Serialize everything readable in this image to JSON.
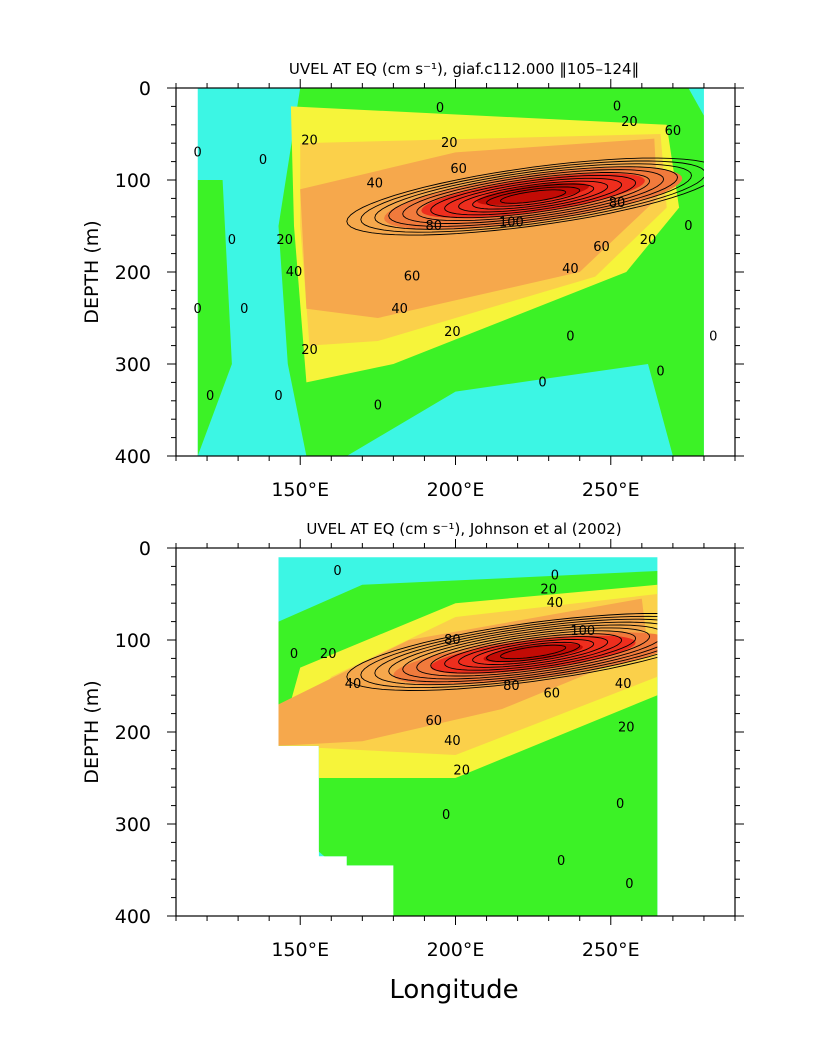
{
  "chart_data": [
    {
      "type": "contour",
      "title": "UVEL AT EQ (cm s⁻¹), giaf.c112.000 ‖105–124‖",
      "xlabel": "",
      "ylabel": "DEPTH (m)",
      "xlim": [
        110,
        290
      ],
      "ylim": [
        400,
        0
      ],
      "xticks": [
        {
          "value": 150,
          "label": "150°E"
        },
        {
          "value": 200,
          "label": "200°E"
        },
        {
          "value": 250,
          "label": "250°E"
        }
      ],
      "yticks": [
        {
          "value": 0,
          "label": "0"
        },
        {
          "value": 100,
          "label": "100"
        },
        {
          "value": 200,
          "label": "200"
        },
        {
          "value": 300,
          "label": "300"
        },
        {
          "value": 400,
          "label": "400"
        }
      ],
      "data_extent": {
        "x": [
          117,
          280
        ],
        "y": [
          0,
          400
        ]
      },
      "contour_levels": [
        -20,
        -10,
        0,
        10,
        20,
        30,
        40,
        50,
        60,
        70,
        80,
        90,
        100,
        110
      ],
      "core": {
        "x": 225,
        "depth": 115,
        "max_speed": 110
      },
      "contour_labels": [
        {
          "value": "0",
          "x": 117,
          "depth": 70
        },
        {
          "value": "0",
          "x": 128,
          "depth": 165
        },
        {
          "value": "0",
          "x": 117,
          "depth": 240
        },
        {
          "value": "0",
          "x": 121,
          "depth": 335
        },
        {
          "value": "0",
          "x": 143,
          "depth": 335
        },
        {
          "value": "0",
          "x": 132,
          "depth": 240
        },
        {
          "value": "0",
          "x": 138,
          "depth": 78
        },
        {
          "value": "20",
          "x": 145,
          "depth": 165
        },
        {
          "value": "0",
          "x": 195,
          "depth": 22
        },
        {
          "value": "0",
          "x": 252,
          "depth": 20
        },
        {
          "value": "20",
          "x": 153,
          "depth": 57
        },
        {
          "value": "20",
          "x": 198,
          "depth": 60
        },
        {
          "value": "20",
          "x": 256,
          "depth": 37
        },
        {
          "value": "60",
          "x": 270,
          "depth": 47
        },
        {
          "value": "60",
          "x": 201,
          "depth": 88
        },
        {
          "value": "40",
          "x": 174,
          "depth": 104
        },
        {
          "value": "80",
          "x": 193,
          "depth": 150
        },
        {
          "value": "100",
          "x": 218,
          "depth": 146
        },
        {
          "value": "80",
          "x": 252,
          "depth": 125
        },
        {
          "value": "60",
          "x": 247,
          "depth": 173
        },
        {
          "value": "40",
          "x": 237,
          "depth": 197
        },
        {
          "value": "20",
          "x": 262,
          "depth": 165
        },
        {
          "value": "0",
          "x": 275,
          "depth": 150
        },
        {
          "value": "40",
          "x": 148,
          "depth": 200
        },
        {
          "value": "60",
          "x": 186,
          "depth": 205
        },
        {
          "value": "40",
          "x": 182,
          "depth": 240
        },
        {
          "value": "20",
          "x": 199,
          "depth": 265
        },
        {
          "value": "20",
          "x": 153,
          "depth": 285
        },
        {
          "value": "0",
          "x": 237,
          "depth": 270
        },
        {
          "value": "0",
          "x": 228,
          "depth": 320
        },
        {
          "value": "0",
          "x": 175,
          "depth": 345
        },
        {
          "value": "0",
          "x": 283,
          "depth": 270
        },
        {
          "value": "0",
          "x": 266,
          "depth": 308
        }
      ]
    },
    {
      "type": "contour",
      "title": "UVEL AT EQ (cm s⁻¹), Johnson et al (2002)",
      "xlabel": "Longitude",
      "ylabel": "DEPTH (m)",
      "xlim": [
        110,
        290
      ],
      "ylim": [
        400,
        0
      ],
      "xticks": [
        {
          "value": 150,
          "label": "150°E"
        },
        {
          "value": 200,
          "label": "200°E"
        },
        {
          "value": 250,
          "label": "250°E"
        }
      ],
      "yticks": [
        {
          "value": 0,
          "label": "0"
        },
        {
          "value": 100,
          "label": "100"
        },
        {
          "value": 200,
          "label": "200"
        },
        {
          "value": 300,
          "label": "300"
        },
        {
          "value": 400,
          "label": "400"
        }
      ],
      "data_extent": {
        "x": [
          143,
          265
        ],
        "y": [
          0,
          400
        ]
      },
      "contour_levels": [
        -20,
        -10,
        0,
        10,
        20,
        30,
        40,
        50,
        60,
        70,
        80,
        90,
        100,
        110
      ],
      "core": {
        "x": 225,
        "depth": 110,
        "max_speed": 110
      },
      "contour_labels": [
        {
          "value": "0",
          "x": 162,
          "depth": 25
        },
        {
          "value": "0",
          "x": 232,
          "depth": 30
        },
        {
          "value": "20",
          "x": 230,
          "depth": 45
        },
        {
          "value": "40",
          "x": 232,
          "depth": 60
        },
        {
          "value": "0",
          "x": 148,
          "depth": 115
        },
        {
          "value": "20",
          "x": 159,
          "depth": 115
        },
        {
          "value": "40",
          "x": 167,
          "depth": 148
        },
        {
          "value": "80",
          "x": 199,
          "depth": 100
        },
        {
          "value": "100",
          "x": 241,
          "depth": 90
        },
        {
          "value": "80",
          "x": 218,
          "depth": 150
        },
        {
          "value": "60",
          "x": 193,
          "depth": 188
        },
        {
          "value": "60",
          "x": 231,
          "depth": 158
        },
        {
          "value": "40",
          "x": 254,
          "depth": 148
        },
        {
          "value": "40",
          "x": 199,
          "depth": 210
        },
        {
          "value": "20",
          "x": 255,
          "depth": 195
        },
        {
          "value": "20",
          "x": 202,
          "depth": 242
        },
        {
          "value": "0",
          "x": 197,
          "depth": 290
        },
        {
          "value": "0",
          "x": 253,
          "depth": 278
        },
        {
          "value": "0",
          "x": 234,
          "depth": 340
        },
        {
          "value": "0",
          "x": 256,
          "depth": 365
        }
      ]
    }
  ]
}
